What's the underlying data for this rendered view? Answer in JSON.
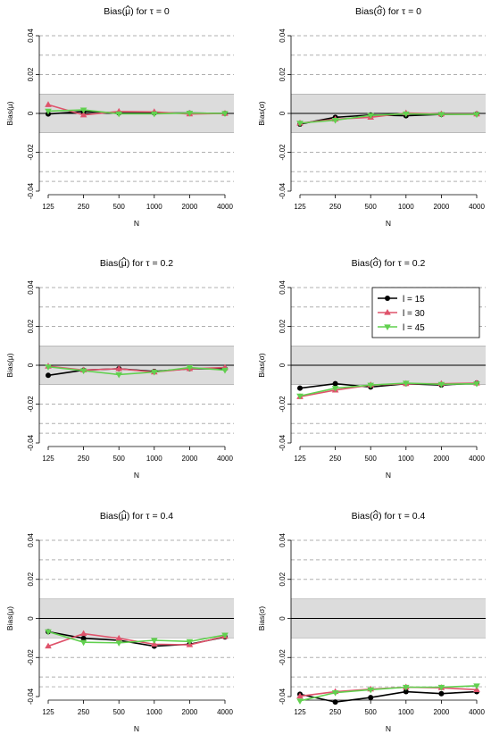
{
  "chart_data": [
    {
      "type": "line",
      "title_prefix": "Bias(",
      "title_symbol": "μ",
      "title_suffix": ") for τ = 0",
      "xlabel": "N",
      "ylabel_prefix": "Bias(",
      "ylabel_symbol": "μ",
      "ylabel_suffix": ")",
      "categories": [
        "125",
        "250",
        "500",
        "1000",
        "2000",
        "4000"
      ],
      "ylim": [
        -0.04,
        0.04
      ],
      "yticks": [
        "-0.04",
        "-0.02",
        "0",
        "0.02",
        "0.04"
      ],
      "band": [
        -0.01,
        0.01
      ],
      "dashed_lines": [
        -0.035,
        -0.03,
        -0.02,
        0.02,
        0.03,
        0.04
      ],
      "series": [
        {
          "name": "l = 15",
          "values": [
            -0.0003,
            0.001,
            0.0002,
            0.0002,
            0.0002,
            0.0
          ]
        },
        {
          "name": "l = 30",
          "values": [
            0.0045,
            -0.0008,
            0.001,
            0.0008,
            -0.0003,
            0.0
          ]
        },
        {
          "name": "l = 45",
          "values": [
            0.0012,
            0.0018,
            -0.0002,
            -0.0002,
            0.0002,
            0.0
          ]
        }
      ]
    },
    {
      "type": "line",
      "title_prefix": "Bias(",
      "title_symbol": "σ",
      "title_suffix": ") for τ = 0",
      "xlabel": "N",
      "ylabel_prefix": "Bias(",
      "ylabel_symbol": "σ",
      "ylabel_suffix": ")",
      "categories": [
        "125",
        "250",
        "500",
        "1000",
        "2000",
        "4000"
      ],
      "ylim": [
        -0.04,
        0.04
      ],
      "yticks": [
        "-0.04",
        "-0.02",
        "0",
        "0.02",
        "0.04"
      ],
      "band": [
        -0.01,
        0.01
      ],
      "dashed_lines": [
        -0.035,
        -0.03,
        -0.02,
        0.02,
        0.03,
        0.04
      ],
      "series": [
        {
          "name": "l = 15",
          "values": [
            -0.0055,
            -0.002,
            -0.0008,
            -0.0012,
            -0.0005,
            -0.0003
          ]
        },
        {
          "name": "l = 30",
          "values": [
            -0.005,
            -0.003,
            -0.002,
            0.0002,
            -0.0003,
            -0.0003
          ]
        },
        {
          "name": "l = 45",
          "values": [
            -0.005,
            -0.0035,
            -0.001,
            -0.0002,
            -0.0005,
            -0.0005
          ]
        }
      ]
    },
    {
      "type": "line",
      "title_prefix": "Bias(",
      "title_symbol": "μ",
      "title_suffix": ") for τ = 0.2",
      "xlabel": "N",
      "ylabel_prefix": "Bias(",
      "ylabel_symbol": "μ",
      "ylabel_suffix": ")",
      "categories": [
        "125",
        "250",
        "500",
        "1000",
        "2000",
        "4000"
      ],
      "ylim": [
        -0.04,
        0.04
      ],
      "yticks": [
        "-0.04",
        "-0.02",
        "0",
        "0.02",
        "0.04"
      ],
      "band": [
        -0.01,
        0.01
      ],
      "dashed_lines": [
        -0.035,
        -0.03,
        -0.02,
        0.02,
        0.03,
        0.04
      ],
      "series": [
        {
          "name": "l = 15",
          "values": [
            -0.0052,
            -0.0025,
            -0.0018,
            -0.0032,
            -0.0018,
            -0.0018
          ]
        },
        {
          "name": "l = 30",
          "values": [
            -0.0005,
            -0.0025,
            -0.0018,
            -0.0035,
            -0.0018,
            -0.0012
          ]
        },
        {
          "name": "l = 45",
          "values": [
            -0.0008,
            -0.0028,
            -0.0048,
            -0.0035,
            -0.0012,
            -0.0025
          ]
        }
      ]
    },
    {
      "type": "line",
      "title_prefix": "Bias(",
      "title_symbol": "σ",
      "title_suffix": ") for τ = 0.2",
      "xlabel": "N",
      "ylabel_prefix": "Bias(",
      "ylabel_symbol": "σ",
      "ylabel_suffix": ")",
      "categories": [
        "125",
        "250",
        "500",
        "1000",
        "2000",
        "4000"
      ],
      "ylim": [
        -0.04,
        0.04
      ],
      "yticks": [
        "-0.04",
        "-0.02",
        "0",
        "0.02",
        "0.04"
      ],
      "band": [
        -0.01,
        0.01
      ],
      "dashed_lines": [
        -0.035,
        -0.03,
        -0.02,
        0.02,
        0.03,
        0.04
      ],
      "legend": {
        "placement": "top-right",
        "labels": [
          "l = 15",
          "l = 30",
          "l = 45"
        ]
      },
      "series": [
        {
          "name": "l = 15",
          "values": [
            -0.0118,
            -0.0095,
            -0.0112,
            -0.0095,
            -0.0102,
            -0.0092
          ]
        },
        {
          "name": "l = 30",
          "values": [
            -0.0162,
            -0.0128,
            -0.0102,
            -0.0095,
            -0.0095,
            -0.0092
          ]
        },
        {
          "name": "l = 45",
          "values": [
            -0.0158,
            -0.0118,
            -0.0102,
            -0.0092,
            -0.0098,
            -0.0095
          ]
        }
      ]
    },
    {
      "type": "line",
      "title_prefix": "Bias(",
      "title_symbol": "μ",
      "title_suffix": ") for τ = 0.4",
      "xlabel": "N",
      "ylabel_prefix": "Bias(",
      "ylabel_symbol": "μ",
      "ylabel_suffix": ")",
      "categories": [
        "125",
        "250",
        "500",
        "1000",
        "2000",
        "4000"
      ],
      "ylim": [
        -0.04,
        0.04
      ],
      "yticks": [
        "-0.04",
        "-0.02",
        "0",
        "0.02",
        "0.04"
      ],
      "band": [
        -0.01,
        0.01
      ],
      "dashed_lines": [
        -0.035,
        -0.03,
        -0.02,
        0.02,
        0.03,
        0.04
      ],
      "series": [
        {
          "name": "l = 15",
          "values": [
            -0.0068,
            -0.0102,
            -0.0112,
            -0.0142,
            -0.0132,
            -0.0095
          ]
        },
        {
          "name": "l = 30",
          "values": [
            -0.0142,
            -0.0078,
            -0.0102,
            -0.0132,
            -0.0135,
            -0.0092
          ]
        },
        {
          "name": "l = 45",
          "values": [
            -0.0068,
            -0.0122,
            -0.0125,
            -0.0112,
            -0.0118,
            -0.0085
          ]
        }
      ]
    },
    {
      "type": "line",
      "title_prefix": "Bias(",
      "title_symbol": "σ",
      "title_suffix": ") for τ = 0.4",
      "xlabel": "N",
      "ylabel_prefix": "Bias(",
      "ylabel_symbol": "σ",
      "ylabel_suffix": ")",
      "categories": [
        "125",
        "250",
        "500",
        "1000",
        "2000",
        "4000"
      ],
      "ylim": [
        -0.04,
        0.04
      ],
      "yticks": [
        "-0.04",
        "-0.02",
        "0",
        "0.02",
        "0.04"
      ],
      "band": [
        -0.01,
        0.01
      ],
      "dashed_lines": [
        -0.035,
        -0.03,
        -0.02,
        0.02,
        0.03,
        0.04
      ],
      "series": [
        {
          "name": "l = 15",
          "values": [
            -0.0388,
            -0.0428,
            -0.0405,
            -0.0375,
            -0.0385,
            -0.0375
          ]
        },
        {
          "name": "l = 30",
          "values": [
            -0.0398,
            -0.0375,
            -0.0362,
            -0.0352,
            -0.0355,
            -0.0365
          ]
        },
        {
          "name": "l = 45",
          "values": [
            -0.0422,
            -0.038,
            -0.0365,
            -0.0352,
            -0.0352,
            -0.0345
          ]
        }
      ]
    }
  ],
  "colors": {
    "l15": "#000000",
    "l30": "#df536b",
    "l45": "#61d04f",
    "band_fill": "#dcdcdc",
    "dashed": "#b0b0b0"
  }
}
